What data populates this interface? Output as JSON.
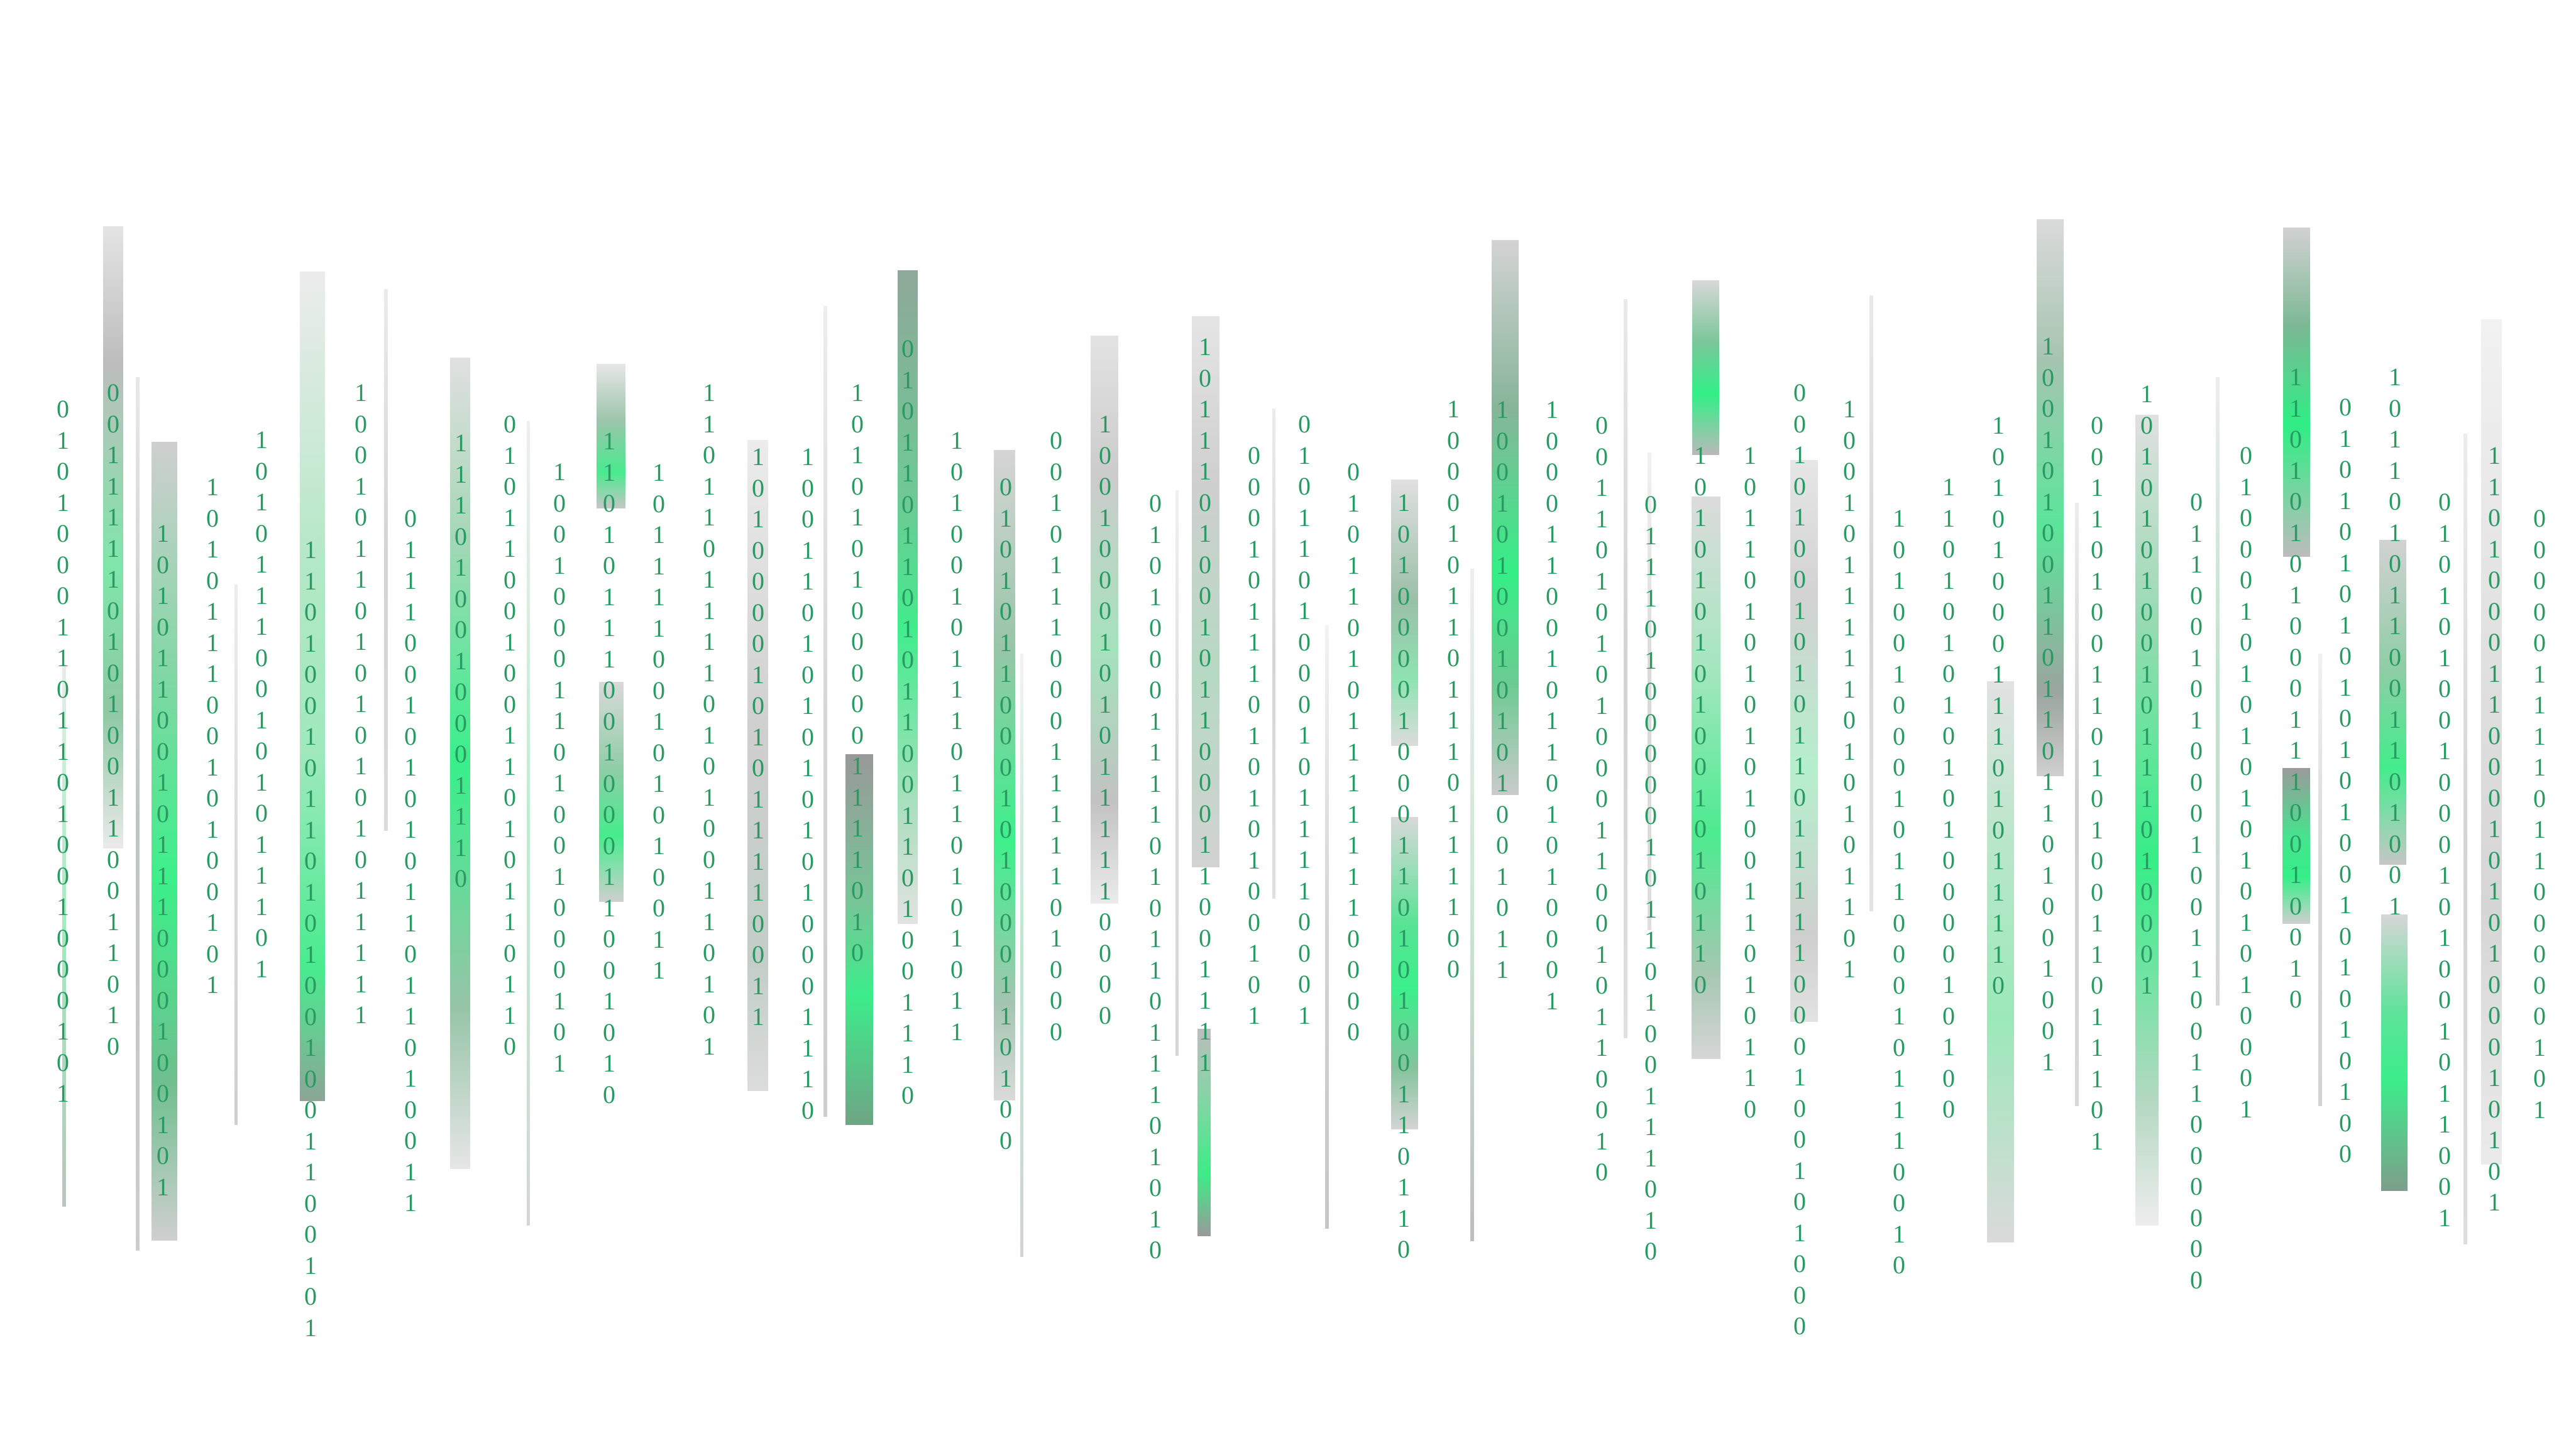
{
  "colors": {
    "background": "#ffffff",
    "digits": "#2a9a63",
    "glow": "#33ee88",
    "grey": "#c8c8c8"
  },
  "columns": [
    "01010001101101001000101",
    "0011111010100110011010",
    "1010110010111000100101",
    "10101110010100101",
    "101011100101011101",
    "11010010110101001001100101",
    "100101101010101011111",
    "01110010101011011010011",
    "111010010001110",
    "010110010011010110110",
    "10010001101001000101",
    "1101011100100011001010",
    "10111100101010011",
    "1101101111010100110101",
    "1010000101011110011",
    "1001101010101010001110",
    "1010101000001111010",
    "0101101101011001101001110",
    "10100101110110101011",
    "0101011000101000110100",
    "00101110001111101000",
    "10010001010111110000",
    "0101000111101011011101010",
    "101110100101100011001111",
    "0001011101010100101",
    "01011010001011110001",
    "0101101011111110000",
    "1010000100011010100110110",
    "1000101101110111100",
    "1001010010101001011",
    "10001100101101010001",
    "0011010101000110010110010",
    "0111010000010110100111010",
    "101010101001010110",
    "1011010101010011010110",
    "0010100101011011111000100101000",
    "1001011111010101101",
    "1010010001011000101110010",
    "110101010101000010100",
    "1010100011101011110",
    "100101001101101101001001",
    "001101001101010011011101",
    "10101010010111010001",
    "01100101000100110011000000",
    "0100010101010101010001",
    "110101010001110010010",
    "0101010101010100101010100",
    "101101011001101001",
    "010101001000101001011001",
    "1101000110001010100010101",
    "00000111101100000101",
    "10000101100000000101001010",
    "010010101001100101",
    "010000000000000000100101"
  ]
}
